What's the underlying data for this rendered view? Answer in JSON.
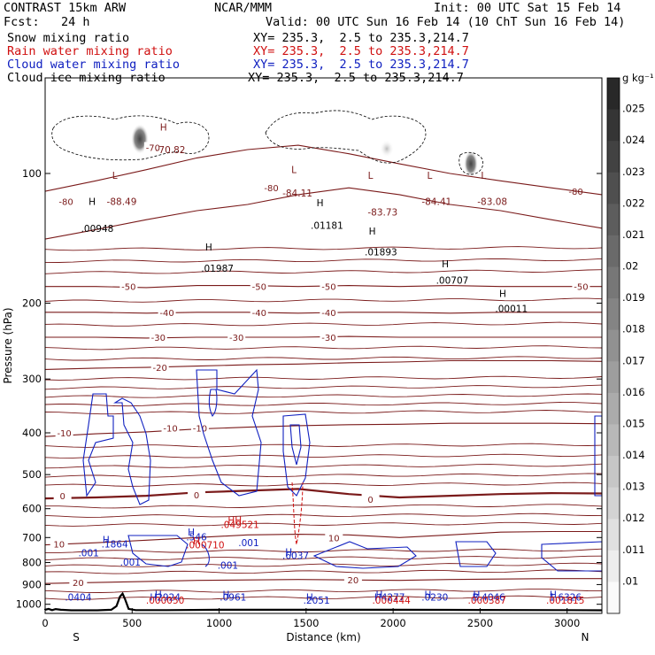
{
  "header": {
    "left1": "CONTRAST 15km ARW",
    "center1": "NCAR/MMM",
    "right1": "Init: 00 UTC Sat 15 Feb 14",
    "left2": "Fcst:   24 h",
    "right2": "Valid: 00 UTC Sun 16 Feb 14 (10 ChT Sun 16 Feb 14)",
    "fields": [
      {
        "label": "Snow mixing ratio",
        "xy": "XY= 235.3,  2.5 to 235.3,214.7",
        "color": "#000000"
      },
      {
        "label": "Rain water mixing ratio",
        "xy": "XY= 235.3,  2.5 to 235.3,214.7",
        "color": "#d01010"
      },
      {
        "label": "Cloud water mixing ratio",
        "xy": "XY= 235.3,  2.5 to 235.3,214.7",
        "color": "#1020c0"
      },
      {
        "label": "Cloud ice mixing ratio",
        "xy": "XY= 235.3,  2.5 to 235.3,214.7",
        "color": "#000000"
      }
    ]
  },
  "chart_data": {
    "type": "cross-section",
    "xlabel": "Distance (km)",
    "ylabel": "Pressure (hPa)",
    "xlim": [
      0,
      3200
    ],
    "ylim": [
      1050,
      60
    ],
    "xticks": [
      0,
      500,
      1000,
      1500,
      2000,
      2500,
      3000
    ],
    "yticks": [
      100,
      200,
      300,
      400,
      500,
      600,
      700,
      800,
      900,
      1000
    ],
    "endpoints": {
      "left": "S",
      "right": "N"
    },
    "colorbar": {
      "unit": "g kg⁻¹",
      "levels": [
        ".025",
        ".024",
        ".023",
        ".022",
        ".021",
        ".02",
        ".019",
        ".018",
        ".017",
        ".016",
        ".015",
        ".014",
        ".013",
        ".012",
        ".011",
        ".01"
      ],
      "min": 0.01,
      "max": 0.026
    },
    "temperature_contours": [
      {
        "label": "-80",
        "p": [
          142,
          135,
          128,
          122,
          118,
          112,
          108,
          112,
          118,
          122,
          128,
          134
        ],
        "labels_at": [
          [
            120,
            116
          ],
          [
            1300,
            108
          ],
          [
            3050,
            110
          ]
        ]
      },
      {
        "label": "-70",
        "p": [
          110,
          104,
          98,
          92,
          88,
          86,
          90,
          95,
          100,
          104,
          108,
          112
        ],
        "labels_at": [
          [
            620,
            87
          ]
        ]
      },
      {
        "label": "-50",
        "p": [
          183,
          183,
          184,
          182,
          182,
          183,
          182,
          183,
          182,
          183,
          183,
          183
        ],
        "labels_at": [
          [
            480,
            183
          ],
          [
            1230,
            183
          ],
          [
            1630,
            183
          ],
          [
            3080,
            183
          ]
        ]
      },
      {
        "label": "-40",
        "p": [
          210,
          210,
          211,
          210,
          210,
          211,
          210,
          210,
          211,
          210,
          210,
          210
        ],
        "labels_at": [
          [
            700,
            210
          ],
          [
            1230,
            210
          ],
          [
            1630,
            210
          ]
        ]
      },
      {
        "label": "-30",
        "p": [
          240,
          240,
          241,
          240,
          240,
          240,
          239,
          240,
          240,
          240,
          240,
          240
        ],
        "labels_at": [
          [
            650,
            240
          ],
          [
            1100,
            240
          ],
          [
            1630,
            240
          ]
        ]
      },
      {
        "label": "-20",
        "p": [
          285,
          283,
          282,
          280,
          278,
          277,
          275,
          274,
          272,
          272,
          272,
          273
        ],
        "labels_at": [
          [
            660,
            282
          ]
        ]
      },
      {
        "label": "-10",
        "p": [
          408,
          402,
          398,
          392,
          388,
          385,
          383,
          382,
          380,
          380,
          380,
          381
        ],
        "labels_at": [
          [
            110,
            400
          ],
          [
            720,
            390
          ],
          [
            890,
            390
          ]
        ]
      },
      {
        "label": "0",
        "p": [
          568,
          565,
          560,
          550,
          545,
          540,
          555,
          565,
          560,
          555,
          552,
          553
        ],
        "labels_at": [
          [
            100,
            560
          ],
          [
            870,
            557
          ],
          [
            1870,
            570
          ]
        ]
      },
      {
        "label": "10",
        "p": [
          728,
          720,
          710,
          700,
          690,
          688,
          690,
          700,
          690,
          680,
          678,
          678
        ],
        "labels_at": [
          [
            80,
            725
          ],
          [
            1660,
            700
          ]
        ]
      },
      {
        "label": "20",
        "p": [
          895,
          890,
          885,
          880,
          878,
          876,
          878,
          880,
          876,
          874,
          872,
          872
        ],
        "labels_at": [
          [
            190,
            890
          ],
          [
            1770,
            877
          ]
        ]
      }
    ],
    "extra_isotherms_p": [
      150,
      160,
      170,
      198,
      225,
      255,
      270,
      300,
      315,
      330,
      345,
      360,
      430,
      455,
      480,
      505,
      530,
      595,
      625,
      655,
      755,
      785,
      815,
      845,
      935,
      970
    ],
    "extrema": [
      {
        "t": "L",
        "x": 400,
        "p": 101,
        "c": "#7a1a1a"
      },
      {
        "t": "H",
        "x": 680,
        "p": 78,
        "c": "#7a1a1a"
      },
      {
        "t": "-70.82",
        "x": 720,
        "p": 88,
        "c": "#7a1a1a"
      },
      {
        "t": "-88.49",
        "x": 440,
        "p": 116,
        "c": "#7a1a1a"
      },
      {
        "t": "H",
        "x": 270,
        "p": 116,
        "c": "#000000"
      },
      {
        "t": ".00948",
        "x": 300,
        "p": 134,
        "c": "#000000"
      },
      {
        "t": "H",
        "x": 940,
        "p": 148,
        "c": "#000000"
      },
      {
        "t": ".01987",
        "x": 990,
        "p": 166,
        "c": "#000000"
      },
      {
        "t": "L",
        "x": 1430,
        "p": 98,
        "c": "#7a1a1a"
      },
      {
        "t": "-84.11",
        "x": 1450,
        "p": 111,
        "c": "#7a1a1a"
      },
      {
        "t": "H",
        "x": 1580,
        "p": 117,
        "c": "#000000"
      },
      {
        "t": ".01181",
        "x": 1620,
        "p": 132,
        "c": "#000000"
      },
      {
        "t": "L",
        "x": 1870,
        "p": 101,
        "c": "#7a1a1a"
      },
      {
        "t": "-83.73",
        "x": 1940,
        "p": 123,
        "c": "#7a1a1a"
      },
      {
        "t": "H",
        "x": 1880,
        "p": 136,
        "c": "#000000"
      },
      {
        "t": ".01893",
        "x": 1930,
        "p": 152,
        "c": "#000000"
      },
      {
        "t": "L",
        "x": 2210,
        "p": 101,
        "c": "#7a1a1a"
      },
      {
        "t": "-84.41",
        "x": 2250,
        "p": 116,
        "c": "#7a1a1a"
      },
      {
        "t": "L",
        "x": 2520,
        "p": 101,
        "c": "#7a1a1a"
      },
      {
        "t": "-83.08",
        "x": 2570,
        "p": 116,
        "c": "#7a1a1a"
      },
      {
        "t": "H",
        "x": 2300,
        "p": 162,
        "c": "#000000"
      },
      {
        "t": ".00707",
        "x": 2340,
        "p": 177,
        "c": "#000000"
      },
      {
        "t": "H",
        "x": 2630,
        "p": 190,
        "c": "#000000"
      },
      {
        "t": ".00011",
        "x": 2680,
        "p": 206,
        "c": "#000000"
      },
      {
        "t": "HH",
        "x": 1090,
        "p": 638,
        "c": "#d01010"
      },
      {
        "t": ".049521",
        "x": 1120,
        "p": 653,
        "c": "#d01010"
      },
      {
        "t": "H",
        "x": 840,
        "p": 680,
        "c": "#1020c0"
      },
      {
        "t": ".546",
        "x": 870,
        "p": 697,
        "c": "#1020c0"
      },
      {
        "t": "H",
        "x": 870,
        "p": 712,
        "c": "#d01010"
      },
      {
        "t": ".000710",
        "x": 920,
        "p": 727,
        "c": "#d01010"
      },
      {
        "t": ".001",
        "x": 1170,
        "p": 719,
        "c": "#1020c0"
      },
      {
        "t": "H",
        "x": 350,
        "p": 708,
        "c": "#1020c0"
      },
      {
        "t": ".1864",
        "x": 400,
        "p": 724,
        "c": "#1020c0"
      },
      {
        "t": ".001",
        "x": 250,
        "p": 760,
        "c": "#1020c0"
      },
      {
        "t": ".001",
        "x": 490,
        "p": 798,
        "c": "#1020c0"
      },
      {
        "t": ".001",
        "x": 1050,
        "p": 812,
        "c": "#1020c0"
      },
      {
        "t": "H",
        "x": 1400,
        "p": 755,
        "c": "#1020c0"
      },
      {
        "t": ".6037",
        "x": 1440,
        "p": 771,
        "c": "#1020c0"
      },
      {
        "t": ".0404",
        "x": 190,
        "p": 962,
        "c": "#1020c0"
      },
      {
        "t": "H",
        "x": 650,
        "p": 948,
        "c": "#1020c0"
      },
      {
        "t": "H2924",
        "x": 690,
        "p": 962,
        "c": "#1020c0"
      },
      {
        "t": ".000050",
        "x": 690,
        "p": 977,
        "c": "#d01010"
      },
      {
        "t": "H",
        "x": 1040,
        "p": 948,
        "c": "#1020c0"
      },
      {
        "t": ".0961",
        "x": 1080,
        "p": 962,
        "c": "#1020c0"
      },
      {
        "t": "H",
        "x": 1520,
        "p": 962,
        "c": "#1020c0"
      },
      {
        "t": ".2051",
        "x": 1560,
        "p": 977,
        "c": "#1020c0"
      },
      {
        "t": "H",
        "x": 1920,
        "p": 948,
        "c": "#1020c0"
      },
      {
        "t": "H4277",
        "x": 1980,
        "p": 962,
        "c": "#1020c0"
      },
      {
        "t": ".000444",
        "x": 1990,
        "p": 977,
        "c": "#d01010"
      },
      {
        "t": "H",
        "x": 2200,
        "p": 948,
        "c": "#1020c0"
      },
      {
        "t": ".0230",
        "x": 2240,
        "p": 962,
        "c": "#1020c0"
      },
      {
        "t": "H",
        "x": 2480,
        "p": 948,
        "c": "#1020c0"
      },
      {
        "t": "B.4046",
        "x": 2550,
        "p": 962,
        "c": "#1020c0"
      },
      {
        "t": ".000387",
        "x": 2540,
        "p": 977,
        "c": "#d01010"
      },
      {
        "t": "H",
        "x": 2920,
        "p": 948,
        "c": "#1020c0"
      },
      {
        "t": "1.6326",
        "x": 2990,
        "p": 962,
        "c": "#1020c0"
      },
      {
        "t": ".001815",
        "x": 2990,
        "p": 977,
        "c": "#d01010"
      }
    ]
  }
}
